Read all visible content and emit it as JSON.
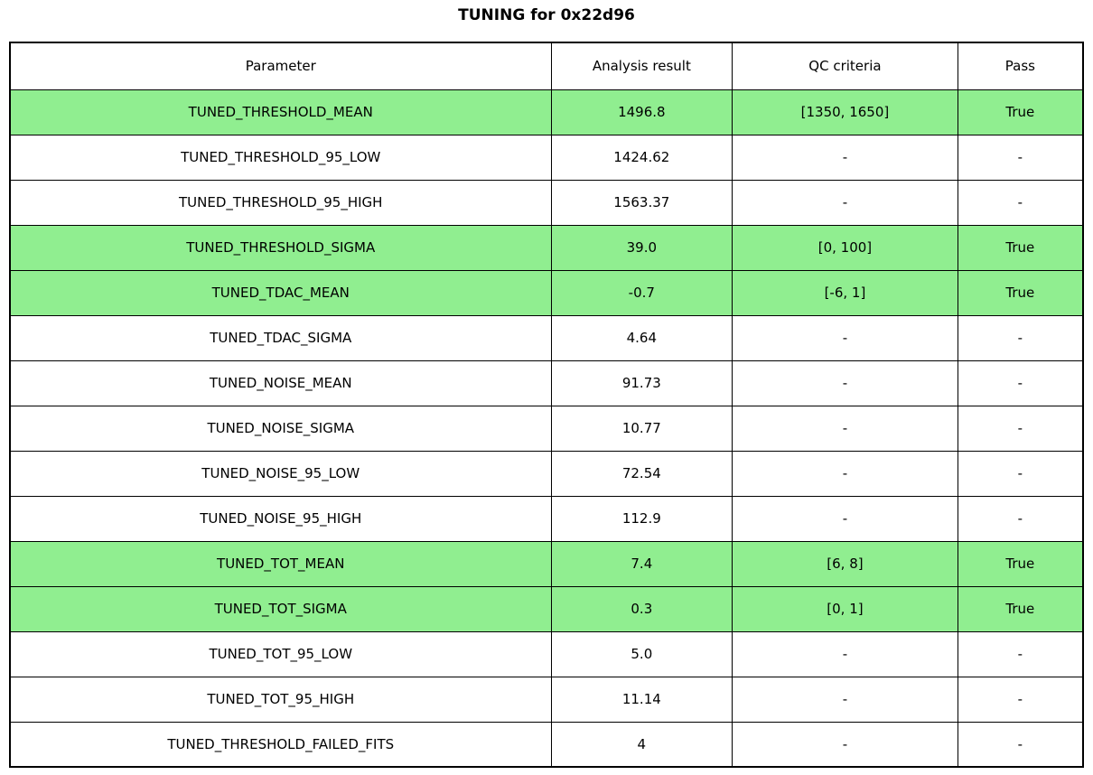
{
  "title": "TUNING for 0x22d96",
  "colors": {
    "pass_green": "#90ee90",
    "border": "#000000",
    "background": "#ffffff"
  },
  "chart_data": {
    "type": "table",
    "title": "TUNING for 0x22d96",
    "columns": [
      "Parameter",
      "Analysis result",
      "QC criteria",
      "Pass"
    ],
    "rows": [
      {
        "cells": [
          "TUNED_THRESHOLD_MEAN",
          "1496.8",
          "[1350, 1650]",
          "True"
        ],
        "highlight": true
      },
      {
        "cells": [
          "TUNED_THRESHOLD_95_LOW",
          "1424.62",
          "-",
          "-"
        ],
        "highlight": false
      },
      {
        "cells": [
          "TUNED_THRESHOLD_95_HIGH",
          "1563.37",
          "-",
          "-"
        ],
        "highlight": false
      },
      {
        "cells": [
          "TUNED_THRESHOLD_SIGMA",
          "39.0",
          "[0, 100]",
          "True"
        ],
        "highlight": true
      },
      {
        "cells": [
          "TUNED_TDAC_MEAN",
          "-0.7",
          "[-6, 1]",
          "True"
        ],
        "highlight": true
      },
      {
        "cells": [
          "TUNED_TDAC_SIGMA",
          "4.64",
          "-",
          "-"
        ],
        "highlight": false
      },
      {
        "cells": [
          "TUNED_NOISE_MEAN",
          "91.73",
          "-",
          "-"
        ],
        "highlight": false
      },
      {
        "cells": [
          "TUNED_NOISE_SIGMA",
          "10.77",
          "-",
          "-"
        ],
        "highlight": false
      },
      {
        "cells": [
          "TUNED_NOISE_95_LOW",
          "72.54",
          "-",
          "-"
        ],
        "highlight": false
      },
      {
        "cells": [
          "TUNED_NOISE_95_HIGH",
          "112.9",
          "-",
          "-"
        ],
        "highlight": false
      },
      {
        "cells": [
          "TUNED_TOT_MEAN",
          "7.4",
          "[6, 8]",
          "True"
        ],
        "highlight": true
      },
      {
        "cells": [
          "TUNED_TOT_SIGMA",
          "0.3",
          "[0, 1]",
          "True"
        ],
        "highlight": true
      },
      {
        "cells": [
          "TUNED_TOT_95_LOW",
          "5.0",
          "-",
          "-"
        ],
        "highlight": false
      },
      {
        "cells": [
          "TUNED_TOT_95_HIGH",
          "11.14",
          "-",
          "-"
        ],
        "highlight": false
      },
      {
        "cells": [
          "TUNED_THRESHOLD_FAILED_FITS",
          "4",
          "-",
          "-"
        ],
        "highlight": false
      }
    ]
  }
}
